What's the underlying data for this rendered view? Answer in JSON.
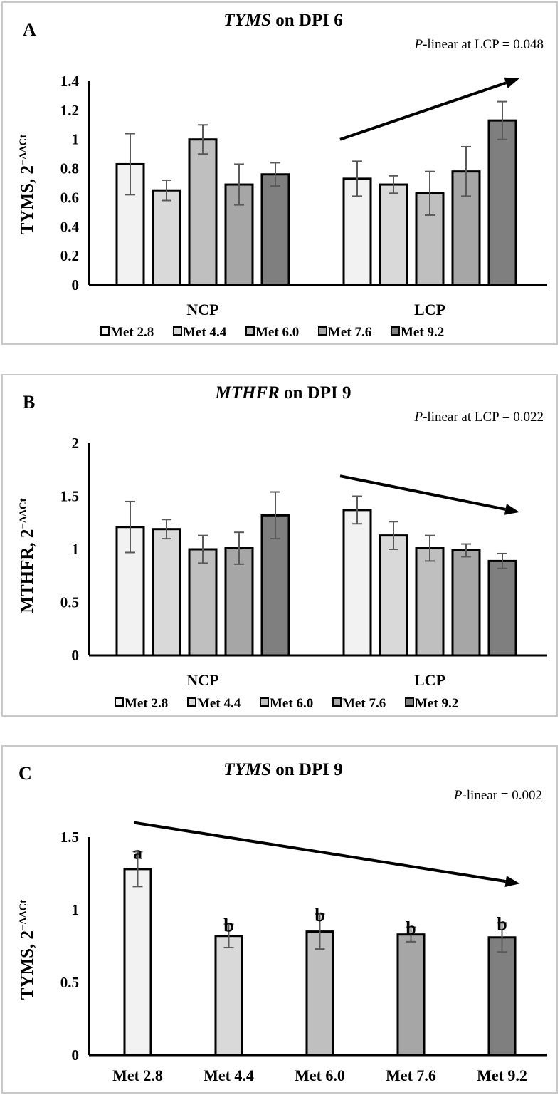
{
  "colors": {
    "met_2_8": "#f2f2f2",
    "met_4_4": "#d9d9d9",
    "met_6_0": "#bfbfbf",
    "met_7_6": "#a6a6a6",
    "met_9_2": "#7f7f7f",
    "outline": "#000000",
    "error_bar": "#595959"
  },
  "chart_data": [
    {
      "type": "bar",
      "panel_label": "A",
      "title_italic": "TYMS",
      "title_rest": " on DPI 6",
      "annotation_italic": "P",
      "annotation_rest": "-linear at LCP = 0.048",
      "ylabel": "TYMS, 2",
      "ylabel_sup": "−ΔΔCt",
      "ylim": [
        0,
        1.4
      ],
      "yticks": [
        "0",
        "0.2",
        "0.4",
        "0.6",
        "0.8",
        "1",
        "1.2",
        "1.4"
      ],
      "categories": [
        "NCP",
        "LCP"
      ],
      "legend": [
        "Met 2.8",
        "Met 4.4",
        "Met 6.0",
        "Met 7.6",
        "Met 9.2"
      ],
      "series": [
        {
          "name": "Met 2.8",
          "values": [
            0.83,
            0.73
          ],
          "errors": [
            0.21,
            0.12
          ]
        },
        {
          "name": "Met 4.4",
          "values": [
            0.65,
            0.69
          ],
          "errors": [
            0.07,
            0.06
          ]
        },
        {
          "name": "Met 6.0",
          "values": [
            1.0,
            0.63
          ],
          "errors": [
            0.1,
            0.15
          ]
        },
        {
          "name": "Met 7.6",
          "values": [
            0.69,
            0.78
          ],
          "errors": [
            0.14,
            0.17
          ]
        },
        {
          "name": "Met 9.2",
          "values": [
            0.76,
            1.13
          ],
          "errors": [
            0.08,
            0.13
          ]
        }
      ],
      "trend_arrow": {
        "group": "LCP",
        "start_y": 1.0,
        "end_y": 1.42
      }
    },
    {
      "type": "bar",
      "panel_label": "B",
      "title_italic": "MTHFR",
      "title_rest": " on DPI 9",
      "annotation_italic": "P",
      "annotation_rest": "-linear at LCP = 0.022",
      "ylabel": "MTHFR, 2",
      "ylabel_sup": "−ΔΔCt",
      "ylim": [
        0,
        2
      ],
      "yticks": [
        "0",
        "0.5",
        "1",
        "1.5",
        "2"
      ],
      "categories": [
        "NCP",
        "LCP"
      ],
      "legend": [
        "Met 2.8",
        "Met 4.4",
        "Met 6.0",
        "Met 7.6",
        "Met 9.2"
      ],
      "series": [
        {
          "name": "Met 2.8",
          "values": [
            1.21,
            1.37
          ],
          "errors": [
            0.24,
            0.13
          ]
        },
        {
          "name": "Met 4.4",
          "values": [
            1.19,
            1.13
          ],
          "errors": [
            0.09,
            0.13
          ]
        },
        {
          "name": "Met 6.0",
          "values": [
            1.0,
            1.01
          ],
          "errors": [
            0.13,
            0.12
          ]
        },
        {
          "name": "Met 7.6",
          "values": [
            1.01,
            0.99
          ],
          "errors": [
            0.15,
            0.06
          ]
        },
        {
          "name": "Met 9.2",
          "values": [
            1.32,
            0.89
          ],
          "errors": [
            0.22,
            0.07
          ]
        }
      ],
      "trend_arrow": {
        "group": "LCP",
        "start_y": 1.69,
        "end_y": 1.35
      }
    },
    {
      "type": "bar",
      "panel_label": "C",
      "title_italic": "TYMS",
      "title_rest": " on DPI 9",
      "annotation_italic": "P",
      "annotation_rest": "-linear = 0.002",
      "ylabel": "TYMS, 2",
      "ylabel_sup": "−ΔΔCt",
      "ylim": [
        0,
        1.5
      ],
      "yticks": [
        "0",
        "0.5",
        "1",
        "1.5"
      ],
      "categories": [
        "Met 2.8",
        "Met 4.4",
        "Met 6.0",
        "Met 7.6",
        "Met 9.2"
      ],
      "values": [
        1.28,
        0.82,
        0.85,
        0.83,
        0.81
      ],
      "errors": [
        0.12,
        0.08,
        0.12,
        0.05,
        0.1
      ],
      "labels": [
        "a",
        "b",
        "b",
        "b",
        "b"
      ],
      "trend_arrow": {
        "start_y": 1.6,
        "end_y": 1.18
      }
    }
  ]
}
